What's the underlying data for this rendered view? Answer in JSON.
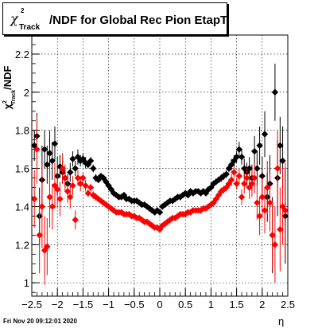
{
  "title": {
    "symbol": "χ",
    "superscript": "2",
    "subscript": "Track",
    "text": "/NDF for Global Rec Pion EtapT"
  },
  "footer": "Fri Nov 20 09:12:01 2020",
  "colors": {
    "series_black": "#000000",
    "series_red": "#ff0000",
    "grid": "#000000"
  },
  "chart_data": {
    "type": "scatter",
    "title": "χ²Track/NDF for Global Rec Pion EtapT",
    "xlabel": "η",
    "ylabel": "χ²Track/NDF",
    "xlim": [
      -2.5,
      2.5
    ],
    "ylim": [
      0.93,
      2.3
    ],
    "xticks": [
      -2.5,
      -2,
      -1.5,
      -1,
      -0.5,
      0,
      0.5,
      1,
      1.5,
      2,
      2.5
    ],
    "xtick_labels": [
      "−2.5",
      "−2",
      "−1.5",
      "−1",
      "−0.5",
      "0",
      "0.5",
      "1",
      "1.5",
      "2",
      "2.5"
    ],
    "yticks": [
      1,
      1.2,
      1.4,
      1.6,
      1.8,
      2,
      2.2
    ],
    "ytick_labels": [
      "1",
      "1.2",
      "1.4",
      "1.6",
      "1.8",
      "2",
      "2.2"
    ],
    "grid": true,
    "legend": "none",
    "series": [
      {
        "color": "#000000",
        "points": [
          [
            -2.45,
            1.72,
            0.08
          ],
          [
            -2.4,
            1.77,
            0.12
          ],
          [
            -2.35,
            1.35,
            0.15
          ],
          [
            -2.3,
            1.54,
            0.18
          ],
          [
            -2.25,
            1.7,
            0.1
          ],
          [
            -2.2,
            1.62,
            0.1
          ],
          [
            -2.15,
            1.68,
            0.12
          ],
          [
            -2.1,
            1.64,
            0.1
          ],
          [
            -2.05,
            1.73,
            0.09
          ],
          [
            -2.0,
            1.56,
            0.1
          ],
          [
            -1.95,
            1.61,
            0.06
          ],
          [
            -1.9,
            1.58,
            0.06
          ],
          [
            -1.85,
            1.55,
            0.05
          ],
          [
            -1.8,
            1.52,
            0.05
          ],
          [
            -1.75,
            1.58,
            0.05
          ],
          [
            -1.7,
            1.65,
            0.04
          ],
          [
            -1.65,
            1.6,
            0.04
          ],
          [
            -1.6,
            1.66,
            0.04
          ],
          [
            -1.55,
            1.64,
            0.03
          ],
          [
            -1.5,
            1.65,
            0.03
          ],
          [
            -1.45,
            1.63,
            0.03
          ],
          [
            -1.4,
            1.62,
            0.02
          ],
          [
            -1.35,
            1.64,
            0.02
          ],
          [
            -1.3,
            1.6,
            0.02
          ],
          [
            -1.25,
            1.55,
            0.02
          ],
          [
            -1.2,
            1.54,
            0.01
          ],
          [
            -1.15,
            1.56,
            0.01
          ],
          [
            -1.1,
            1.55,
            0.01
          ],
          [
            -1.05,
            1.53,
            0.01
          ],
          [
            -1.0,
            1.51,
            0.01
          ],
          [
            -0.95,
            1.49,
            0.01
          ],
          [
            -0.9,
            1.47,
            0.01
          ],
          [
            -0.85,
            1.46,
            0.01
          ],
          [
            -0.8,
            1.45,
            0.01
          ],
          [
            -0.75,
            1.45,
            0.01
          ],
          [
            -0.7,
            1.46,
            0.01
          ],
          [
            -0.65,
            1.44,
            0.01
          ],
          [
            -0.6,
            1.44,
            0.01
          ],
          [
            -0.55,
            1.43,
            0.01
          ],
          [
            -0.5,
            1.43,
            0.01
          ],
          [
            -0.45,
            1.43,
            0.01
          ],
          [
            -0.4,
            1.42,
            0.01
          ],
          [
            -0.35,
            1.41,
            0.01
          ],
          [
            -0.3,
            1.41,
            0.01
          ],
          [
            -0.25,
            1.4,
            0.01
          ],
          [
            -0.2,
            1.39,
            0.01
          ],
          [
            -0.15,
            1.38,
            0.01
          ],
          [
            -0.1,
            1.37,
            0.01
          ],
          [
            -0.05,
            1.38,
            0.01
          ],
          [
            0.0,
            1.37,
            0.01
          ],
          [
            0.05,
            1.4,
            0.01
          ],
          [
            0.1,
            1.41,
            0.01
          ],
          [
            0.15,
            1.42,
            0.01
          ],
          [
            0.2,
            1.43,
            0.01
          ],
          [
            0.25,
            1.43,
            0.01
          ],
          [
            0.3,
            1.44,
            0.01
          ],
          [
            0.35,
            1.45,
            0.01
          ],
          [
            0.4,
            1.45,
            0.01
          ],
          [
            0.45,
            1.46,
            0.01
          ],
          [
            0.5,
            1.47,
            0.01
          ],
          [
            0.55,
            1.46,
            0.01
          ],
          [
            0.6,
            1.48,
            0.01
          ],
          [
            0.65,
            1.47,
            0.01
          ],
          [
            0.7,
            1.48,
            0.01
          ],
          [
            0.75,
            1.48,
            0.01
          ],
          [
            0.8,
            1.47,
            0.01
          ],
          [
            0.85,
            1.48,
            0.01
          ],
          [
            0.9,
            1.47,
            0.01
          ],
          [
            0.95,
            1.49,
            0.01
          ],
          [
            1.0,
            1.5,
            0.01
          ],
          [
            1.05,
            1.52,
            0.01
          ],
          [
            1.1,
            1.53,
            0.01
          ],
          [
            1.15,
            1.54,
            0.01
          ],
          [
            1.2,
            1.55,
            0.02
          ],
          [
            1.25,
            1.56,
            0.02
          ],
          [
            1.3,
            1.57,
            0.02
          ],
          [
            1.35,
            1.6,
            0.02
          ],
          [
            1.4,
            1.62,
            0.03
          ],
          [
            1.45,
            1.64,
            0.03
          ],
          [
            1.5,
            1.66,
            0.03
          ],
          [
            1.55,
            1.7,
            0.04
          ],
          [
            1.6,
            1.66,
            0.04
          ],
          [
            1.65,
            1.6,
            0.05
          ],
          [
            1.7,
            1.58,
            0.05
          ],
          [
            1.75,
            1.6,
            0.06
          ],
          [
            1.8,
            1.55,
            0.07
          ],
          [
            1.85,
            1.69,
            0.08
          ],
          [
            1.9,
            1.6,
            0.09
          ],
          [
            1.95,
            1.72,
            0.1
          ],
          [
            2.0,
            1.56,
            0.1
          ],
          [
            2.05,
            1.78,
            0.12
          ],
          [
            2.1,
            1.45,
            0.13
          ],
          [
            2.15,
            1.52,
            0.15
          ],
          [
            2.2,
            1.25,
            0.2
          ],
          [
            2.25,
            2.0,
            0.15
          ],
          [
            2.3,
            1.55,
            0.2
          ],
          [
            2.35,
            1.72,
            0.15
          ],
          [
            2.4,
            1.64,
            0.18
          ],
          [
            2.45,
            1.35,
            0.25
          ]
        ]
      },
      {
        "color": "#ff0000",
        "points": [
          [
            -2.45,
            1.44,
            0.15
          ],
          [
            -2.4,
            1.7,
            0.18
          ],
          [
            -2.35,
            1.25,
            0.2
          ],
          [
            -2.3,
            1.4,
            0.22
          ],
          [
            -2.25,
            1.17,
            0.18
          ],
          [
            -2.2,
            1.19,
            0.15
          ],
          [
            -2.15,
            1.45,
            0.16
          ],
          [
            -2.1,
            1.4,
            0.12
          ],
          [
            -2.05,
            1.51,
            0.12
          ],
          [
            -2.0,
            1.49,
            0.1
          ],
          [
            -1.95,
            1.44,
            0.09
          ],
          [
            -1.9,
            1.6,
            0.08
          ],
          [
            -1.85,
            1.55,
            0.07
          ],
          [
            -1.8,
            1.48,
            0.06
          ],
          [
            -1.75,
            1.45,
            0.06
          ],
          [
            -1.7,
            1.51,
            0.05
          ],
          [
            -1.65,
            1.33,
            0.05
          ],
          [
            -1.6,
            1.55,
            0.04
          ],
          [
            -1.55,
            1.52,
            0.04
          ],
          [
            -1.5,
            1.55,
            0.03
          ],
          [
            -1.45,
            1.51,
            0.03
          ],
          [
            -1.4,
            1.47,
            0.02
          ],
          [
            -1.35,
            1.5,
            0.02
          ],
          [
            -1.3,
            1.46,
            0.02
          ],
          [
            -1.25,
            1.45,
            0.02
          ],
          [
            -1.2,
            1.44,
            0.01
          ],
          [
            -1.15,
            1.43,
            0.01
          ],
          [
            -1.1,
            1.42,
            0.01
          ],
          [
            -1.05,
            1.41,
            0.01
          ],
          [
            -1.0,
            1.4,
            0.01
          ],
          [
            -0.95,
            1.39,
            0.01
          ],
          [
            -0.9,
            1.38,
            0.01
          ],
          [
            -0.85,
            1.37,
            0.01
          ],
          [
            -0.8,
            1.37,
            0.01
          ],
          [
            -0.75,
            1.37,
            0.01
          ],
          [
            -0.7,
            1.36,
            0.01
          ],
          [
            -0.65,
            1.36,
            0.01
          ],
          [
            -0.6,
            1.36,
            0.01
          ],
          [
            -0.55,
            1.35,
            0.01
          ],
          [
            -0.5,
            1.35,
            0.01
          ],
          [
            -0.45,
            1.34,
            0.01
          ],
          [
            -0.4,
            1.34,
            0.01
          ],
          [
            -0.35,
            1.33,
            0.01
          ],
          [
            -0.3,
            1.32,
            0.01
          ],
          [
            -0.25,
            1.32,
            0.01
          ],
          [
            -0.2,
            1.31,
            0.01
          ],
          [
            -0.15,
            1.3,
            0.01
          ],
          [
            -0.1,
            1.29,
            0.01
          ],
          [
            -0.05,
            1.29,
            0.01
          ],
          [
            0.0,
            1.28,
            0.01
          ],
          [
            0.05,
            1.3,
            0.01
          ],
          [
            0.1,
            1.31,
            0.01
          ],
          [
            0.15,
            1.32,
            0.01
          ],
          [
            0.2,
            1.33,
            0.01
          ],
          [
            0.25,
            1.34,
            0.01
          ],
          [
            0.3,
            1.34,
            0.01
          ],
          [
            0.35,
            1.35,
            0.01
          ],
          [
            0.4,
            1.36,
            0.01
          ],
          [
            0.45,
            1.36,
            0.01
          ],
          [
            0.5,
            1.36,
            0.01
          ],
          [
            0.55,
            1.37,
            0.01
          ],
          [
            0.6,
            1.37,
            0.01
          ],
          [
            0.65,
            1.38,
            0.01
          ],
          [
            0.7,
            1.38,
            0.01
          ],
          [
            0.75,
            1.38,
            0.01
          ],
          [
            0.8,
            1.38,
            0.01
          ],
          [
            0.85,
            1.39,
            0.01
          ],
          [
            0.9,
            1.39,
            0.01
          ],
          [
            0.95,
            1.4,
            0.01
          ],
          [
            1.0,
            1.41,
            0.01
          ],
          [
            1.05,
            1.42,
            0.01
          ],
          [
            1.1,
            1.44,
            0.01
          ],
          [
            1.15,
            1.46,
            0.01
          ],
          [
            1.2,
            1.48,
            0.02
          ],
          [
            1.25,
            1.49,
            0.02
          ],
          [
            1.3,
            1.5,
            0.02
          ],
          [
            1.35,
            1.52,
            0.02
          ],
          [
            1.4,
            1.54,
            0.03
          ],
          [
            1.45,
            1.58,
            0.03
          ],
          [
            1.5,
            1.52,
            0.03
          ],
          [
            1.55,
            1.56,
            0.04
          ],
          [
            1.6,
            1.45,
            0.04
          ],
          [
            1.65,
            1.52,
            0.05
          ],
          [
            1.7,
            1.55,
            0.05
          ],
          [
            1.75,
            1.5,
            0.06
          ],
          [
            1.8,
            1.52,
            0.07
          ],
          [
            1.85,
            1.55,
            0.08
          ],
          [
            1.9,
            1.42,
            0.09
          ],
          [
            1.95,
            1.35,
            0.1
          ],
          [
            2.0,
            1.45,
            0.1
          ],
          [
            2.05,
            1.38,
            0.12
          ],
          [
            2.1,
            1.5,
            0.14
          ],
          [
            2.15,
            1.42,
            0.15
          ],
          [
            2.2,
            1.25,
            0.18
          ],
          [
            2.25,
            1.2,
            0.2
          ],
          [
            2.3,
            1.6,
            0.2
          ],
          [
            2.35,
            1.28,
            0.22
          ],
          [
            2.4,
            1.4,
            0.2
          ],
          [
            2.45,
            1.38,
            0.25
          ]
        ]
      }
    ]
  }
}
